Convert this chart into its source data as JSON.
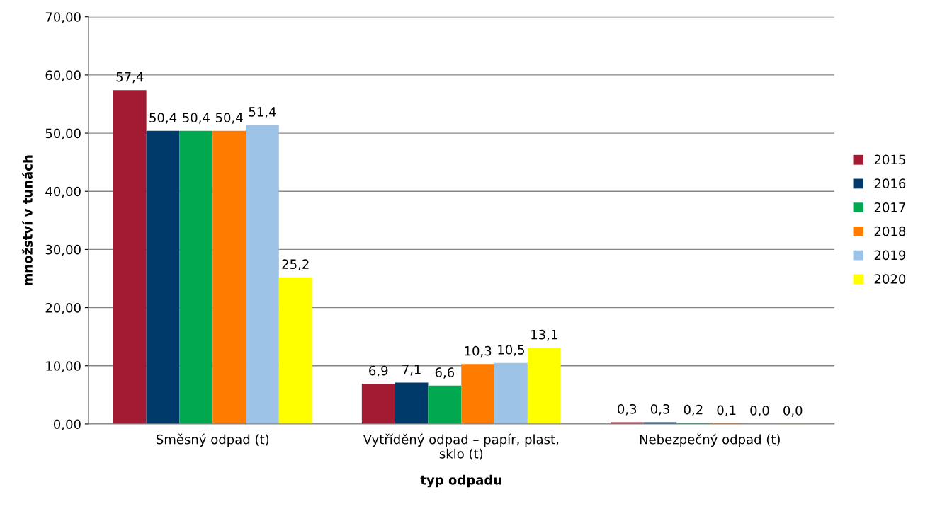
{
  "chart_data": {
    "type": "bar",
    "xlabel": "typ odpadu",
    "ylabel": "množství v tunách",
    "categories": [
      "Směsný odpad (t)",
      "Vytříděný odpad – papír, plast,\nsklo (t)",
      "Nebezpečný odpad (t)"
    ],
    "series": [
      {
        "name": "2015",
        "color": "#a31a33",
        "values": [
          57.4,
          6.9,
          0.3
        ],
        "value_labels": [
          "57,4",
          "6,9",
          "0,3"
        ]
      },
      {
        "name": "2016",
        "color": "#003a6a",
        "values": [
          50.4,
          7.1,
          0.3
        ],
        "value_labels": [
          "50,4",
          "7,1",
          "0,3"
        ]
      },
      {
        "name": "2017",
        "color": "#00a84f",
        "values": [
          50.4,
          6.6,
          0.2
        ],
        "value_labels": [
          "50,4",
          "6,6",
          "0,2"
        ]
      },
      {
        "name": "2018",
        "color": "#ff7c00",
        "values": [
          50.4,
          10.3,
          0.1
        ],
        "value_labels": [
          "50,4",
          "10,3",
          "0,1"
        ]
      },
      {
        "name": "2019",
        "color": "#9dc3e6",
        "values": [
          51.4,
          10.5,
          0.04
        ],
        "value_labels": [
          "51,4",
          "10,5",
          "0,0"
        ]
      },
      {
        "name": "2020",
        "color": "#ffff00",
        "values": [
          25.2,
          13.1,
          0.03
        ],
        "value_labels": [
          "25,2",
          "13,1",
          "0,0"
        ]
      }
    ],
    "ylim": [
      0,
      70
    ],
    "yticks": [
      {
        "value": 0,
        "label": "0,00"
      },
      {
        "value": 10,
        "label": "10,00"
      },
      {
        "value": 20,
        "label": "20,00"
      },
      {
        "value": 30,
        "label": "30,00"
      },
      {
        "value": 40,
        "label": "40,00"
      },
      {
        "value": 50,
        "label": "50,00"
      },
      {
        "value": 60,
        "label": "60,00"
      },
      {
        "value": 70,
        "label": "70,00"
      }
    ],
    "grid": "y",
    "legend": "right"
  }
}
